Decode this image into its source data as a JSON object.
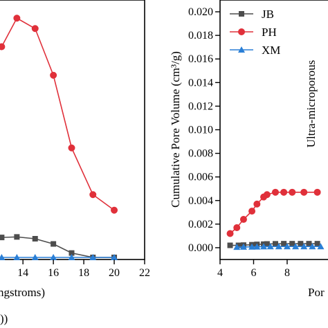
{
  "chart_data": [
    {
      "type": "line",
      "note_visible": "left panel, cropped on its left side",
      "xlabel": "ngstroms)",
      "ylabel": "",
      "xlim": [
        12.4,
        22
      ],
      "ylim": [
        0,
        1
      ],
      "x_ticks": [
        14,
        16,
        18,
        20,
        22
      ],
      "y_ticks": [],
      "grid": false,
      "series": [
        {
          "name": "PH",
          "color": "#e0303a",
          "marker": "circle",
          "x": [
            12.6,
            13.6,
            14.8,
            16.0,
            17.2,
            18.6,
            20.0
          ],
          "y": [
            0.82,
            0.93,
            0.89,
            0.71,
            0.43,
            0.25,
            0.19
          ]
        },
        {
          "name": "JB",
          "color": "#4d4d4d",
          "marker": "square",
          "x": [
            12.6,
            13.6,
            14.8,
            16.0,
            17.2,
            18.6,
            20.0
          ],
          "y": [
            0.085,
            0.087,
            0.08,
            0.06,
            0.025,
            0.008,
            0.008
          ]
        },
        {
          "name": "XM",
          "color": "#2a7fd6",
          "marker": "triangle",
          "x": [
            12.6,
            13.6,
            14.8,
            16.0,
            17.2,
            18.6,
            20.0
          ],
          "y": [
            0.008,
            0.008,
            0.008,
            0.008,
            0.008,
            0.008,
            0.008
          ]
        }
      ]
    },
    {
      "type": "line",
      "note_visible": "right panel, cropped on its right side",
      "xlabel": "Por",
      "ylabel": "Cumulative Pore Volume (cm³/g)",
      "xlim": [
        4,
        10.6
      ],
      "ylim": [
        -0.001,
        0.021
      ],
      "x_ticks": [
        4,
        6,
        8
      ],
      "y_ticks": [
        "0.000",
        "0.002",
        "0.004",
        "0.006",
        "0.008",
        "0.010",
        "0.012",
        "0.014",
        "0.016",
        "0.018",
        "0.020"
      ],
      "grid": false,
      "legend": {
        "position": "top-left",
        "entries": [
          "JB",
          "PH",
          "XM"
        ]
      },
      "annotations": [
        "Ultra-microporous"
      ],
      "series": [
        {
          "name": "JB",
          "color": "#4d4d4d",
          "marker": "square",
          "x": [
            4.6,
            5.1,
            5.4,
            5.9,
            6.2,
            6.6,
            6.8,
            7.3,
            7.8,
            8.3,
            8.8,
            9.3,
            9.8
          ],
          "y": [
            0.0002,
            0.0002,
            0.00022,
            0.00025,
            0.00028,
            0.0003,
            0.00032,
            0.00033,
            0.00034,
            0.00034,
            0.00034,
            0.00034,
            0.00034
          ]
        },
        {
          "name": "PH",
          "color": "#e0303a",
          "marker": "circle",
          "x": [
            4.6,
            5.0,
            5.4,
            5.9,
            6.2,
            6.6,
            6.8,
            7.3,
            7.8,
            8.3,
            9.0,
            9.8
          ],
          "y": [
            0.0012,
            0.0017,
            0.0024,
            0.0031,
            0.0037,
            0.0043,
            0.0045,
            0.0047,
            0.0047,
            0.0047,
            0.0047,
            0.0047
          ]
        },
        {
          "name": "XM",
          "color": "#2a7fd6",
          "marker": "triangle",
          "x": [
            5.0,
            5.4,
            5.9,
            6.2,
            6.6,
            7.0,
            7.5,
            8.0,
            8.5,
            9.0,
            9.5,
            10.0
          ],
          "y": [
            5e-05,
            6e-05,
            7e-05,
            8e-05,
            9e-05,
            0.0001,
            0.0001,
            0.0001,
            0.0001,
            0.0001,
            0.0001,
            0.0001
          ]
        }
      ]
    }
  ],
  "labels": {
    "panel_tag": "))"
  }
}
